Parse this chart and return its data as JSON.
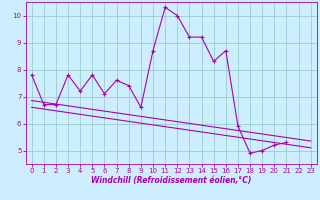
{
  "x": [
    0,
    1,
    2,
    3,
    4,
    5,
    6,
    7,
    8,
    9,
    10,
    11,
    12,
    13,
    14,
    15,
    16,
    17,
    18,
    19,
    20,
    21,
    22,
    23
  ],
  "line1": [
    7.8,
    6.7,
    6.7,
    7.8,
    7.2,
    7.8,
    7.1,
    7.6,
    7.4,
    6.6,
    8.7,
    10.3,
    10.0,
    9.2,
    9.2,
    8.3,
    8.7,
    5.9,
    4.9,
    5.0,
    5.2,
    5.3,
    null,
    null
  ],
  "line2_x": [
    0,
    23
  ],
  "line2_y": [
    6.85,
    5.35
  ],
  "line3_x": [
    0,
    23
  ],
  "line3_y": [
    6.6,
    5.1
  ],
  "bg_color": "#cceeff",
  "line_color": "#aa00aa",
  "grid_color": "#99cccc",
  "xlabel": "Windchill (Refroidissement éolien,°C)",
  "xlim": [
    -0.5,
    23.5
  ],
  "ylim": [
    4.5,
    10.5
  ],
  "yticks": [
    5,
    6,
    7,
    8,
    9,
    10
  ],
  "xticks": [
    0,
    1,
    2,
    3,
    4,
    5,
    6,
    7,
    8,
    9,
    10,
    11,
    12,
    13,
    14,
    15,
    16,
    17,
    18,
    19,
    20,
    21,
    22,
    23
  ]
}
